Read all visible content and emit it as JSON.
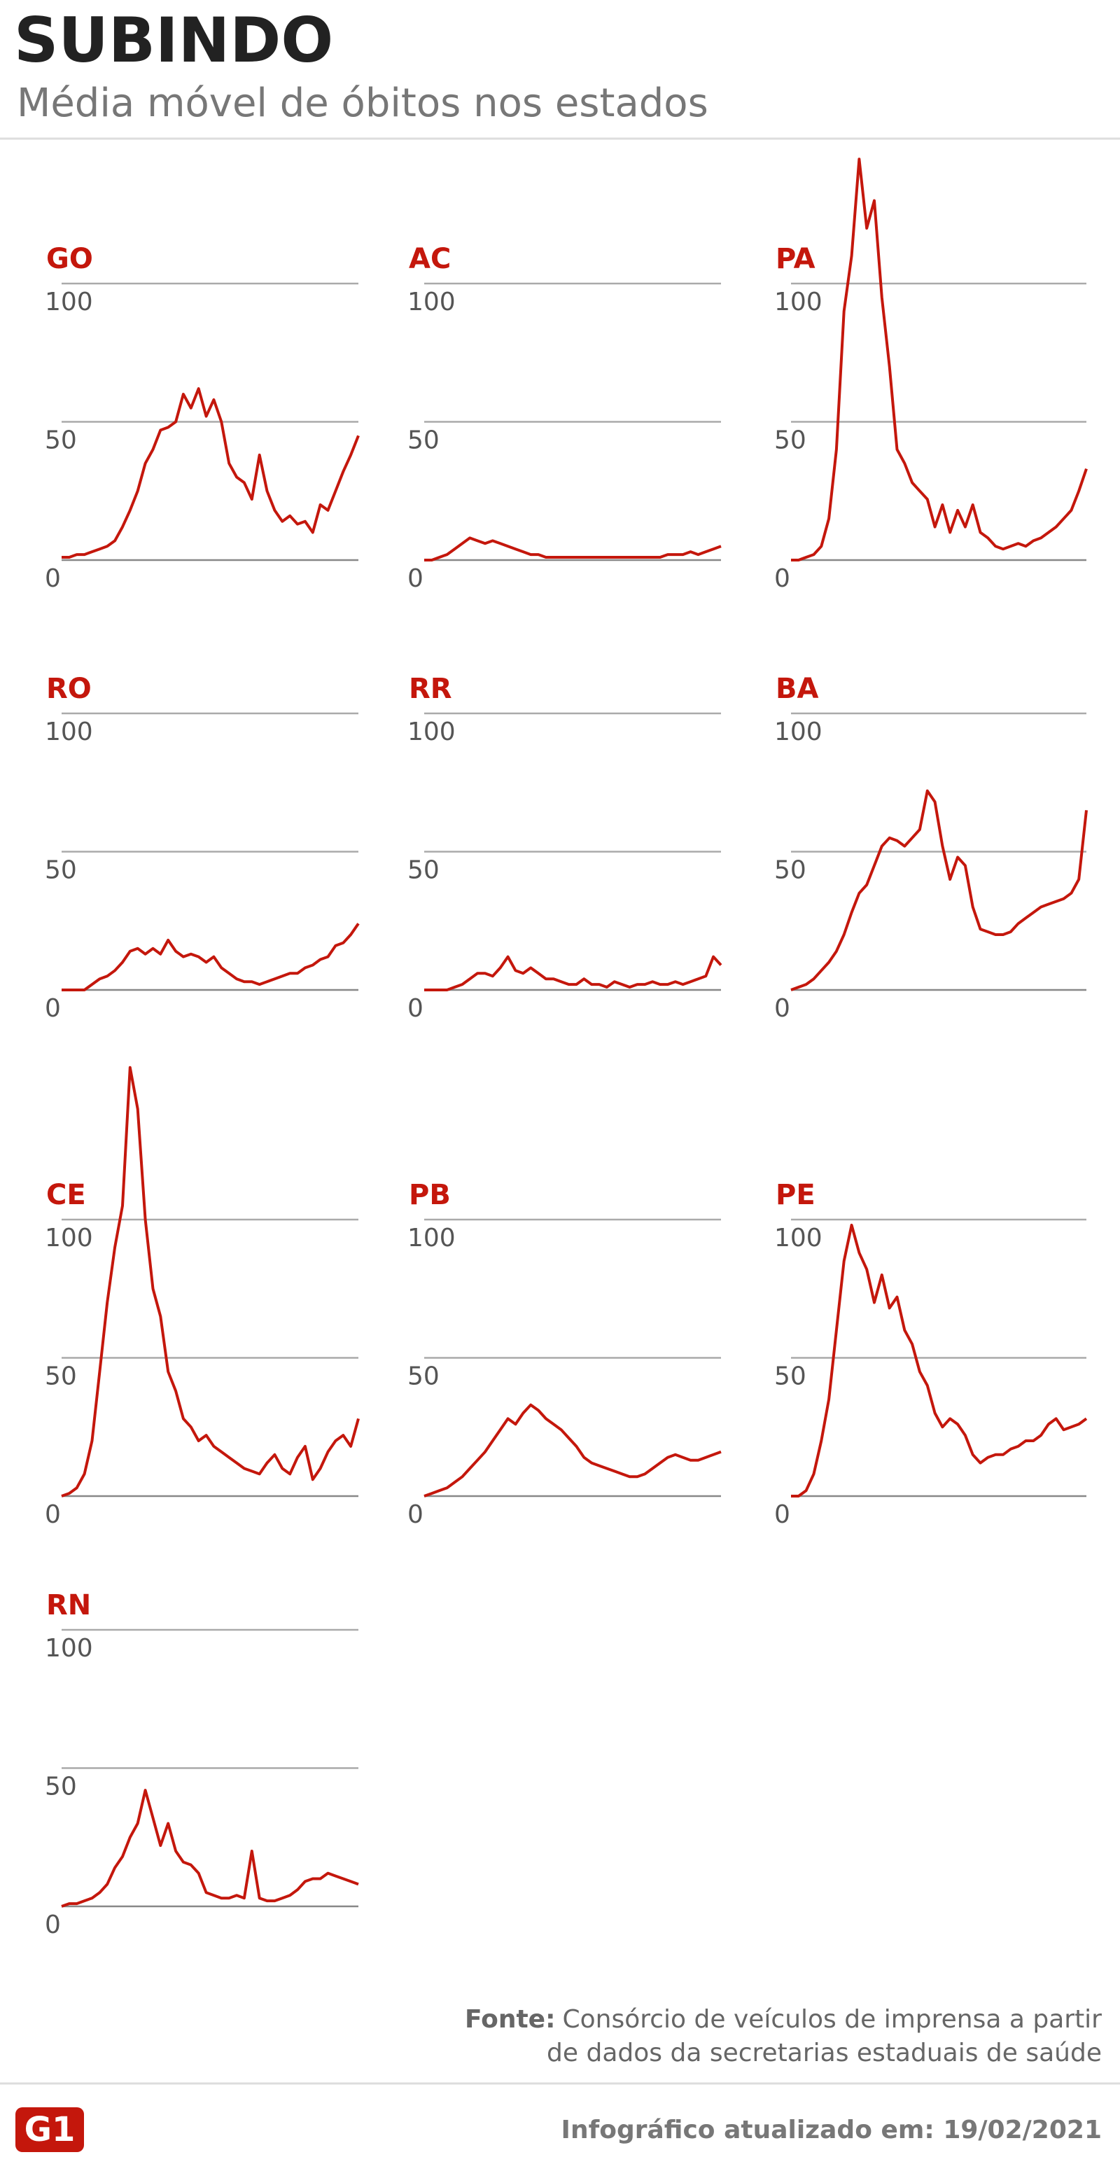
{
  "title": "SUBINDO",
  "subtitle": "Média móvel de óbitos nos estados",
  "source_label": "Fonte:",
  "source_line1": "Consórcio de veículos de imprensa a partir",
  "source_line2": "de dados da secretarias estaduais de saúde",
  "updated": "Infográfico atualizado em: 19/02/2021",
  "logo": "G1",
  "chart_data": [
    {
      "type": "line",
      "title": "GO",
      "color": "#c4170c",
      "ylim": [
        0,
        100
      ],
      "yticks": [
        0,
        50,
        100
      ],
      "values": [
        1,
        1,
        2,
        2,
        3,
        4,
        5,
        7,
        12,
        18,
        25,
        35,
        40,
        47,
        48,
        50,
        60,
        55,
        62,
        52,
        58,
        50,
        35,
        30,
        28,
        22,
        38,
        25,
        18,
        14,
        16,
        13,
        14,
        10,
        20,
        18,
        25,
        32,
        38,
        45
      ]
    },
    {
      "type": "line",
      "title": "AC",
      "color": "#c4170c",
      "ylim": [
        0,
        100
      ],
      "yticks": [
        0,
        50,
        100
      ],
      "values": [
        0,
        0,
        1,
        2,
        4,
        6,
        8,
        7,
        6,
        7,
        6,
        5,
        4,
        3,
        2,
        2,
        1,
        1,
        1,
        1,
        1,
        1,
        1,
        1,
        1,
        1,
        1,
        1,
        1,
        1,
        1,
        1,
        2,
        2,
        2,
        3,
        2,
        3,
        4,
        5
      ]
    },
    {
      "type": "line",
      "title": "PA",
      "color": "#c4170c",
      "ylim": [
        0,
        100
      ],
      "yticks": [
        0,
        50,
        100
      ],
      "values": [
        0,
        0,
        1,
        2,
        5,
        15,
        40,
        90,
        110,
        145,
        120,
        130,
        95,
        70,
        40,
        35,
        28,
        25,
        22,
        12,
        20,
        10,
        18,
        12,
        20,
        10,
        8,
        5,
        4,
        5,
        6,
        5,
        7,
        8,
        10,
        12,
        15,
        18,
        25,
        33
      ]
    },
    {
      "type": "line",
      "title": "RO",
      "color": "#c4170c",
      "ylim": [
        0,
        100
      ],
      "yticks": [
        0,
        50,
        100
      ],
      "values": [
        0,
        0,
        0,
        0,
        2,
        4,
        5,
        7,
        10,
        14,
        15,
        13,
        15,
        13,
        18,
        14,
        12,
        13,
        12,
        10,
        12,
        8,
        6,
        4,
        3,
        3,
        2,
        3,
        4,
        5,
        6,
        6,
        8,
        9,
        11,
        12,
        16,
        17,
        20,
        24
      ]
    },
    {
      "type": "line",
      "title": "RR",
      "color": "#c4170c",
      "ylim": [
        0,
        100
      ],
      "yticks": [
        0,
        50,
        100
      ],
      "values": [
        0,
        0,
        0,
        0,
        1,
        2,
        4,
        6,
        6,
        5,
        8,
        12,
        7,
        6,
        8,
        6,
        4,
        4,
        3,
        2,
        2,
        4,
        2,
        2,
        1,
        3,
        2,
        1,
        2,
        2,
        3,
        2,
        2,
        3,
        2,
        3,
        4,
        5,
        12,
        9
      ]
    },
    {
      "type": "line",
      "title": "BA",
      "color": "#c4170c",
      "ylim": [
        0,
        100
      ],
      "yticks": [
        0,
        50,
        100
      ],
      "values": [
        0,
        1,
        2,
        4,
        7,
        10,
        14,
        20,
        28,
        35,
        38,
        45,
        52,
        55,
        54,
        52,
        55,
        58,
        72,
        68,
        52,
        40,
        48,
        45,
        30,
        22,
        21,
        20,
        20,
        21,
        24,
        26,
        28,
        30,
        31,
        32,
        33,
        35,
        40,
        65
      ]
    },
    {
      "type": "line",
      "title": "CE",
      "color": "#c4170c",
      "ylim": [
        0,
        100
      ],
      "yticks": [
        0,
        50,
        100
      ],
      "values": [
        0,
        1,
        3,
        8,
        20,
        45,
        70,
        90,
        105,
        155,
        140,
        100,
        75,
        65,
        45,
        38,
        28,
        25,
        20,
        22,
        18,
        16,
        14,
        12,
        10,
        9,
        8,
        12,
        15,
        10,
        8,
        14,
        18,
        6,
        10,
        16,
        20,
        22,
        18,
        28
      ]
    },
    {
      "type": "line",
      "title": "PB",
      "color": "#c4170c",
      "ylim": [
        0,
        100
      ],
      "yticks": [
        0,
        50,
        100
      ],
      "values": [
        0,
        1,
        2,
        3,
        5,
        7,
        10,
        13,
        16,
        20,
        24,
        28,
        26,
        30,
        33,
        31,
        28,
        26,
        24,
        21,
        18,
        14,
        12,
        11,
        10,
        9,
        8,
        7,
        7,
        8,
        10,
        12,
        14,
        15,
        14,
        13,
        13,
        14,
        15,
        16
      ]
    },
    {
      "type": "line",
      "title": "PE",
      "color": "#c4170c",
      "ylim": [
        0,
        100
      ],
      "yticks": [
        0,
        50,
        100
      ],
      "values": [
        0,
        0,
        2,
        8,
        20,
        35,
        60,
        85,
        98,
        88,
        82,
        70,
        80,
        68,
        72,
        60,
        55,
        45,
        40,
        30,
        25,
        28,
        26,
        22,
        15,
        12,
        14,
        15,
        15,
        17,
        18,
        20,
        20,
        22,
        26,
        28,
        24,
        25,
        26,
        28
      ]
    },
    {
      "type": "line",
      "title": "RN",
      "color": "#c4170c",
      "ylim": [
        0,
        100
      ],
      "yticks": [
        0,
        50,
        100
      ],
      "values": [
        0,
        1,
        1,
        2,
        3,
        5,
        8,
        14,
        18,
        25,
        30,
        42,
        32,
        22,
        30,
        20,
        16,
        15,
        12,
        5,
        4,
        3,
        3,
        4,
        3,
        20,
        3,
        2,
        2,
        3,
        4,
        6,
        9,
        10,
        10,
        12,
        11,
        10,
        9,
        8
      ]
    }
  ]
}
